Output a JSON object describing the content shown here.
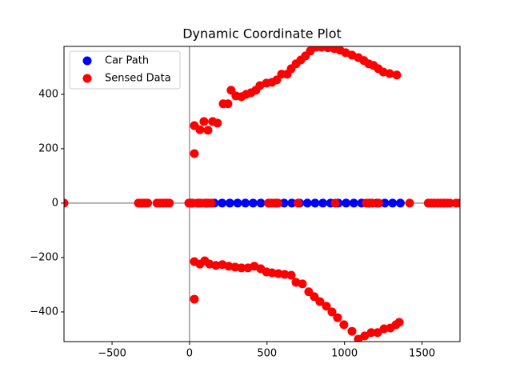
{
  "chart_data": {
    "type": "scatter",
    "title": "Dynamic Coordinate Plot",
    "xlim": [
      -810,
      1745
    ],
    "ylim": [
      -509,
      576
    ],
    "xticks": [
      {
        "value": -500,
        "label": "−500"
      },
      0,
      500,
      1000,
      1500
    ],
    "yticks": [
      {
        "value": -400,
        "label": "−400"
      },
      {
        "value": -200,
        "label": "−200"
      },
      0,
      200,
      400
    ],
    "legend": "upper left",
    "series": [
      {
        "name": "Car Path",
        "color": "#0000ff",
        "x": [
          10,
          60,
          110,
          160,
          210,
          260,
          310,
          360,
          410,
          460,
          510,
          560,
          610,
          660,
          710,
          760,
          810,
          860,
          910,
          960,
          1010,
          1060,
          1110,
          1160,
          1210,
          1260,
          1310,
          1360
        ],
        "y": [
          0,
          0,
          0,
          0,
          0,
          0,
          0,
          0,
          0,
          0,
          0,
          0,
          0,
          0,
          0,
          0,
          0,
          0,
          0,
          0,
          0,
          0,
          0,
          0,
          0,
          0,
          0,
          0
        ]
      },
      {
        "name": "Sensed Data",
        "color": "#ff0000",
        "x": [
          -810,
          -330,
          -315,
          -300,
          -285,
          -270,
          -210,
          -190,
          -170,
          -150,
          -130,
          -5,
          20,
          50,
          75,
          100,
          120,
          140,
          510,
          530,
          550,
          570,
          700,
          940,
          1140,
          1160,
          1180,
          1220,
          1420,
          1540,
          1560,
          1580,
          1600,
          1620,
          1640,
          1660,
          1680,
          1720,
          1745,
          31,
          31,
          67,
          93,
          119,
          149,
          180,
          217,
          248,
          268,
          299,
          335,
          366,
          397,
          428,
          454,
          496,
          532,
          563,
          594,
          630,
          656,
          687,
          718,
          748,
          779,
          816,
          852,
          893,
          934,
          971,
          1007,
          1048,
          1089,
          1125,
          1156,
          1187,
          1218,
          1250,
          1291,
          1337,
          31,
          31,
          67,
          98,
          129,
          170,
          212,
          253,
          294,
          335,
          377,
          418,
          459,
          496,
          532,
          573,
          614,
          656,
          687,
          728,
          769,
          805,
          841,
          883,
          919,
          955,
          996,
          1048,
          1089,
          1130,
          1172,
          1213,
          1255,
          1296,
          1332,
          1353
        ],
        "y": [
          0,
          0,
          0,
          0,
          0,
          0,
          0,
          0,
          0,
          0,
          0,
          0,
          0,
          0,
          0,
          0,
          0,
          0,
          0,
          0,
          0,
          0,
          0,
          0,
          0,
          0,
          0,
          0,
          0,
          0,
          0,
          0,
          0,
          0,
          0,
          0,
          0,
          0,
          0,
          285,
          182,
          270,
          300,
          268,
          300,
          294,
          365,
          365,
          415,
          394,
          391,
          400,
          406,
          415,
          432,
          441,
          444,
          453,
          474,
          474,
          494,
          512,
          526,
          541,
          559,
          573,
          573,
          571,
          568,
          562,
          553,
          544,
          535,
          524,
          512,
          506,
          494,
          482,
          476,
          471,
          -215,
          -353,
          -224,
          -212,
          -224,
          -229,
          -226,
          -232,
          -235,
          -238,
          -238,
          -232,
          -241,
          -253,
          -256,
          -259,
          -262,
          -265,
          -291,
          -297,
          -326,
          -344,
          -362,
          -379,
          -400,
          -421,
          -447,
          -471,
          -500,
          -488,
          -476,
          -476,
          -462,
          -459,
          -447,
          -438
        ]
      }
    ]
  }
}
